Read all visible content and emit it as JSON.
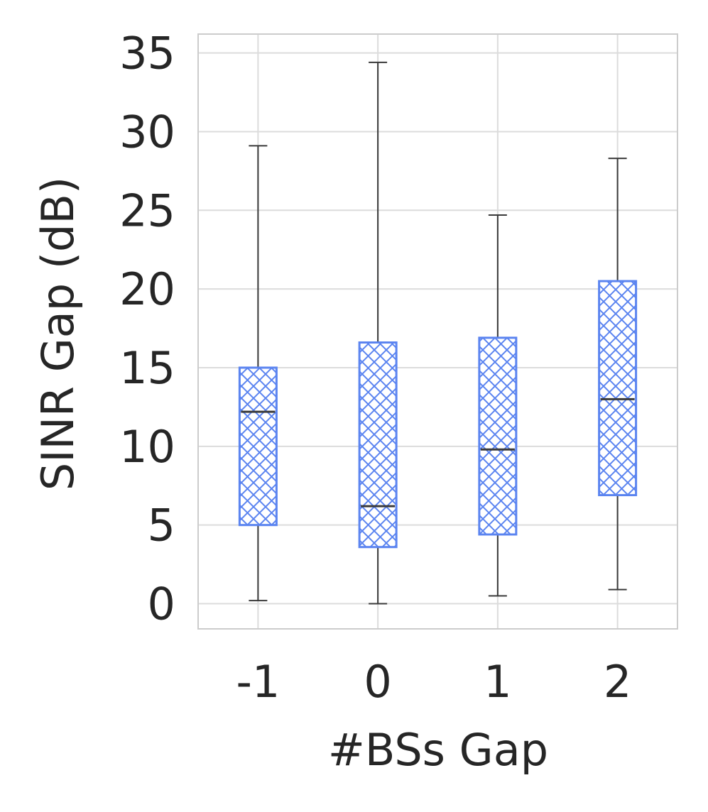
{
  "chart_data": {
    "type": "box",
    "xlabel": "#BSs Gap",
    "ylabel": "SINR Gap (dB)",
    "categories": [
      "-1",
      "0",
      "1",
      "2"
    ],
    "ylim": [
      -1.6,
      36.2
    ],
    "yticks": [
      0,
      5,
      10,
      15,
      20,
      25,
      30,
      35
    ],
    "grid": true,
    "boxes": [
      {
        "category": "-1",
        "whisker_low": 0.2,
        "q1": 5.0,
        "median": 12.2,
        "q3": 15.0,
        "whisker_high": 29.1
      },
      {
        "category": "0",
        "whisker_low": 0.0,
        "q1": 3.6,
        "median": 6.2,
        "q3": 16.6,
        "whisker_high": 34.4
      },
      {
        "category": "1",
        "whisker_low": 0.5,
        "q1": 4.4,
        "median": 9.8,
        "q3": 16.9,
        "whisker_high": 24.7
      },
      {
        "category": "2",
        "whisker_low": 0.9,
        "q1": 6.9,
        "median": 13.0,
        "q3": 20.5,
        "whisker_high": 28.3
      }
    ],
    "colors": {
      "box_edge": "#5b84f0",
      "hatch": "#5b84f0",
      "whisker": "#3a3a3a",
      "median": "#3a3a3a",
      "grid": "#dcdcdc",
      "spine": "#cccccc",
      "text": "#262626"
    }
  }
}
